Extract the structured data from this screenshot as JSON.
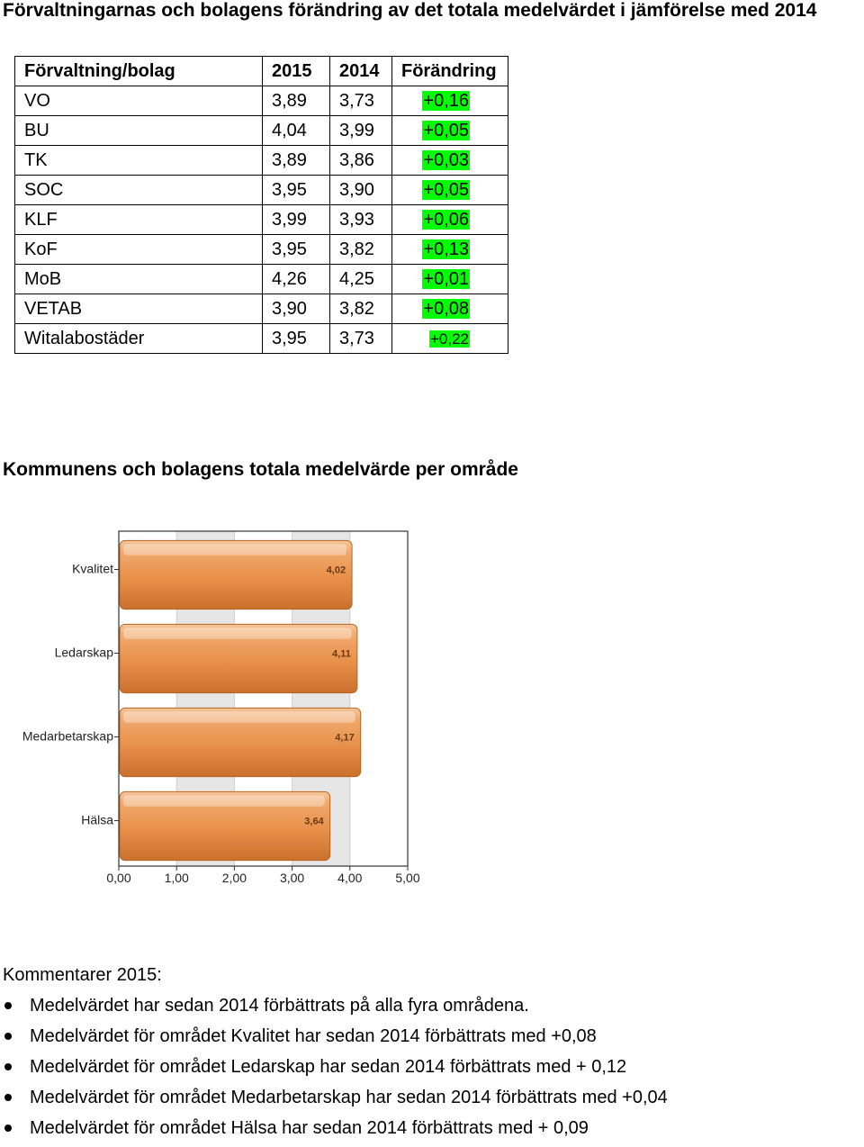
{
  "heading1": "Förvaltningarnas och bolagens förändring av det totala medelvärdet i jämförelse med 2014",
  "table": {
    "headers": [
      "Förvaltning/bolag",
      "2015",
      "2014",
      "Förändring"
    ],
    "rows": [
      [
        "VO",
        "3,89",
        "3,73",
        "+0,16"
      ],
      [
        "BU",
        "4,04",
        "3,99",
        "+0,05"
      ],
      [
        "TK",
        "3,89",
        "3,86",
        "+0,03"
      ],
      [
        "SOC",
        "3,95",
        "3,90",
        "+0,05"
      ],
      [
        "KLF",
        "3,99",
        "3,93",
        "+0,06"
      ],
      [
        "KoF",
        "3,95",
        "3,82",
        "+0,13"
      ],
      [
        "MoB",
        "4,26",
        "4,25",
        "+0,01"
      ],
      [
        "VETAB",
        "3,90",
        "3,82",
        "+0,08"
      ],
      [
        "Witalabostäder",
        "3,95",
        "3,73",
        "+0,22"
      ]
    ],
    "highlight_color": "#00ff00"
  },
  "heading2": "Kommunens och bolagens totala medelvärde per område",
  "chart_data": {
    "type": "bar",
    "orientation": "horizontal",
    "categories": [
      "Kvalitet",
      "Ledarskap",
      "Medarbetarskap",
      "Hälsa"
    ],
    "values": [
      4.02,
      4.11,
      4.17,
      3.64
    ],
    "value_labels": [
      "4,02",
      "4,11",
      "4,17",
      "3,64"
    ],
    "xlim": [
      0,
      5
    ],
    "xticks": [
      "0,00",
      "1,00",
      "2,00",
      "3,00",
      "4,00",
      "5,00"
    ],
    "bar_color": "#e8904a",
    "grid": true
  },
  "comments": {
    "title": "Kommentarer 2015:",
    "items": [
      "Medelvärdet har sedan 2014 förbättrats på alla fyra områdena.",
      "Medelvärdet för området Kvalitet har sedan 2014 förbättrats med +0,08",
      "Medelvärdet för området Ledarskap har sedan 2014 förbättrats med + 0,12",
      "Medelvärdet för området Medarbetarskap har sedan 2014 förbättrats med +0,04",
      "Medelvärdet för området Hälsa har sedan 2014 förbättrats med + 0,09"
    ]
  }
}
